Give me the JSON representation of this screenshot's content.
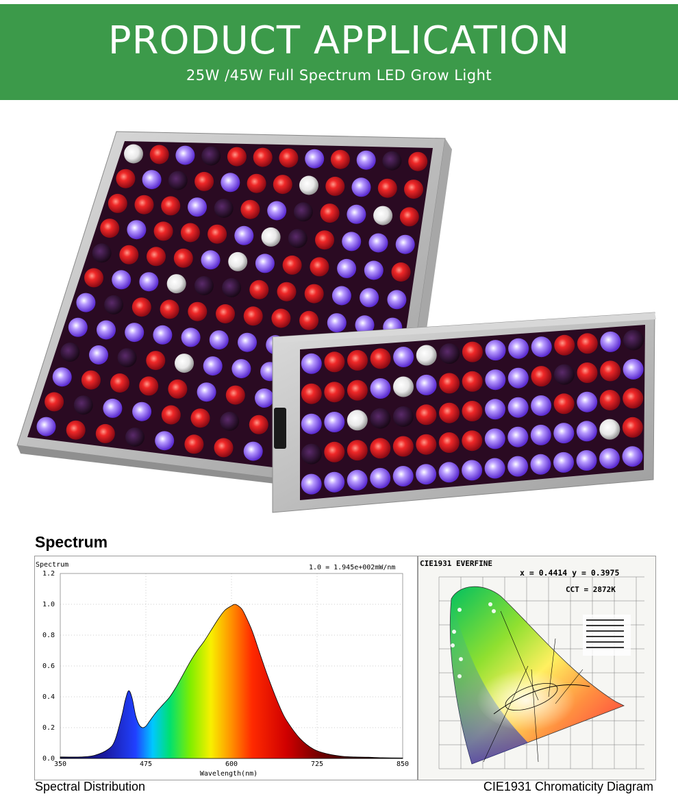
{
  "banner": {
    "title": "PRODUCT APPLICATION",
    "subtitle": "25W /45W Full Spectrum LED Grow Light"
  },
  "spectrum_section": {
    "title": "Spectrum"
  },
  "chart_data": [
    {
      "type": "area",
      "ylabel": "Spectrum",
      "xlabel": "Wavelength(nm)",
      "annotation": "1.0 = 1.945e+002mW/nm",
      "xlim": [
        350,
        850
      ],
      "ylim": [
        0,
        1.2
      ],
      "x_ticks": [
        "350",
        "475",
        "600",
        "725",
        "850"
      ],
      "y_ticks": [
        "0.0",
        "0.2",
        "0.4",
        "0.6",
        "0.8",
        "1.0",
        "1.2"
      ],
      "grid": true,
      "series": [
        {
          "x": [
            350,
            380,
            400,
            420,
            430,
            440,
            445,
            450,
            455,
            460,
            465,
            470,
            475,
            480,
            490,
            500,
            510,
            520,
            530,
            540,
            550,
            560,
            570,
            580,
            590,
            600,
            605,
            610,
            615,
            620,
            630,
            640,
            650,
            660,
            670,
            680,
            700,
            720,
            740,
            760,
            780,
            800,
            820,
            850
          ],
          "y": [
            0.01,
            0.01,
            0.02,
            0.06,
            0.12,
            0.28,
            0.38,
            0.44,
            0.39,
            0.28,
            0.22,
            0.2,
            0.21,
            0.24,
            0.3,
            0.35,
            0.4,
            0.47,
            0.55,
            0.63,
            0.7,
            0.76,
            0.83,
            0.9,
            0.96,
            0.99,
            1.0,
            0.99,
            0.97,
            0.93,
            0.83,
            0.7,
            0.57,
            0.45,
            0.34,
            0.25,
            0.13,
            0.06,
            0.03,
            0.015,
            0.01,
            0.008,
            0.005,
            0.003
          ]
        }
      ]
    }
  ],
  "cie": {
    "header": "CIE1931  EVERFINE",
    "coords": "x = 0.4414 y = 0.3975",
    "cct": "CCT = 2872K"
  },
  "captions": {
    "left": "Spectral Distribution",
    "right": "CIE1931 Chromaticity Diagram"
  },
  "colors": {
    "banner": "#3c9a4a",
    "led_red": "#e0202a",
    "led_blue": "#6a3df0",
    "led_white": "#f2f2f2"
  }
}
